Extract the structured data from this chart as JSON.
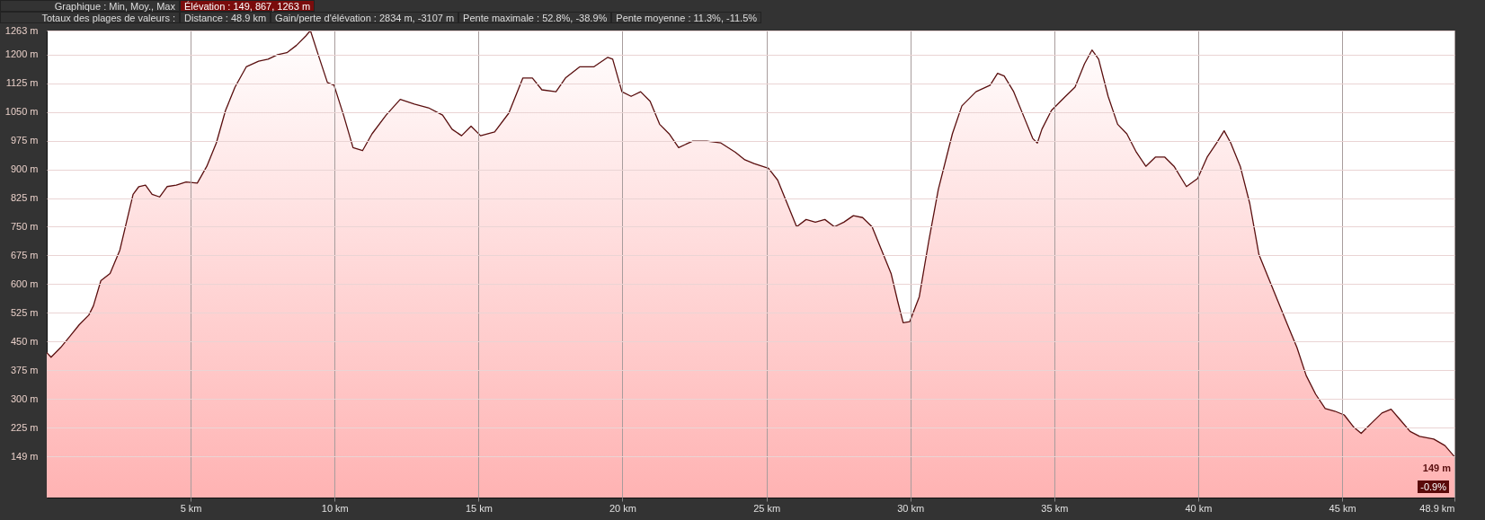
{
  "chart_data": {
    "type": "area",
    "annotations": [
      "Graphique : Min, Moy., Max",
      "Élévation : 149, 867, 1263 m",
      "Totaux des plages de valeurs :",
      "Distance : 48.9 km",
      "Gain/perte d'élévation : 2834 m, -3107 m",
      "Pente maximale : 52.8%, -38.9%",
      "Pente moyenne : 11.3%, -11.5%",
      "-0.9%",
      {
        "text": "149 m",
        "x": 48.9,
        "y": 149
      }
    ],
    "x": [
      0,
      0.15,
      0.48,
      0.8,
      1.13,
      1.46,
      1.62,
      1.88,
      2.2,
      2.54,
      2.77,
      3.0,
      3.2,
      3.43,
      3.66,
      3.92,
      4.18,
      4.5,
      4.84,
      5.23,
      5.56,
      5.89,
      6.21,
      6.54,
      6.93,
      7.36,
      7.69,
      8.02,
      8.34,
      8.67,
      9.0,
      9.16,
      9.43,
      9.75,
      9.98,
      10.31,
      10.64,
      10.97,
      11.3,
      11.79,
      12.28,
      12.77,
      13.26,
      13.75,
      14.08,
      14.41,
      14.74,
      15.07,
      15.56,
      16.05,
      16.54,
      16.87,
      17.2,
      17.69,
      18.02,
      18.51,
      19.0,
      19.49,
      19.66,
      19.98,
      20.3,
      20.63,
      20.96,
      21.29,
      21.62,
      21.95,
      22.44,
      22.93,
      23.42,
      23.92,
      24.25,
      24.57,
      25.07,
      25.39,
      25.72,
      26.05,
      26.38,
      26.7,
      27.03,
      27.36,
      27.69,
      28.02,
      28.34,
      28.67,
      29.0,
      29.33,
      29.56,
      29.75,
      29.98,
      30.31,
      30.64,
      30.97,
      31.46,
      31.79,
      32.28,
      32.77,
      33.03,
      33.26,
      33.59,
      33.92,
      34.25,
      34.41,
      34.57,
      34.9,
      35.39,
      35.72,
      36.05,
      36.31,
      36.54,
      36.87,
      37.2,
      37.52,
      37.85,
      38.18,
      38.51,
      38.84,
      39.16,
      39.59,
      39.98,
      40.31,
      40.64,
      40.9,
      41.13,
      41.46,
      41.79,
      42.11,
      42.44,
      42.77,
      43.1,
      43.43,
      43.75,
      44.08,
      44.41,
      44.74,
      45.07,
      45.39,
      45.66,
      46.05,
      46.38,
      46.7,
      47.03,
      47.36,
      47.69,
      48.18,
      48.57,
      48.9
    ],
    "series": [
      {
        "color": "#5a0f0f",
        "values": [
          421,
          409,
          434,
          463,
          494,
          519,
          543,
          609,
          628,
          689,
          762,
          835,
          855,
          859,
          835,
          828,
          855,
          859,
          867,
          864,
          908,
          969,
          1054,
          1115,
          1168,
          1183,
          1188,
          1200,
          1205,
          1224,
          1249,
          1263,
          1200,
          1127,
          1120,
          1042,
          957,
          949,
          993,
          1042,
          1083,
          1071,
          1061,
          1042,
          1005,
          988,
          1013,
          988,
          998,
          1047,
          1139,
          1139,
          1108,
          1103,
          1139,
          1168,
          1168,
          1193,
          1188,
          1103,
          1091,
          1103,
          1078,
          1018,
          993,
          957,
          974,
          974,
          969,
          945,
          925,
          915,
          903,
          872,
          811,
          750,
          769,
          762,
          769,
          750,
          762,
          779,
          774,
          750,
          689,
          628,
          555,
          499,
          502,
          567,
          713,
          847,
          993,
          1066,
          1103,
          1120,
          1151,
          1144,
          1103,
          1042,
          981,
          969,
          1005,
          1054,
          1091,
          1115,
          1176,
          1212,
          1188,
          1091,
          1018,
          993,
          945,
          908,
          932,
          932,
          908,
          855,
          876,
          932,
          969,
          1001,
          969,
          908,
          811,
          677,
          616,
          555,
          494,
          434,
          361,
          312,
          275,
          268,
          258,
          227,
          210,
          239,
          263,
          273,
          244,
          215,
          202,
          195,
          178,
          149
        ]
      }
    ],
    "xlim": [
      0,
      48.9
    ],
    "ylim": [
      42,
      1263
    ],
    "xticks": [
      {
        "value": 5,
        "label": "5 km"
      },
      {
        "value": 10,
        "label": "10 km"
      },
      {
        "value": 15,
        "label": "15 km"
      },
      {
        "value": 20,
        "label": "20 km"
      },
      {
        "value": 25,
        "label": "25 km"
      },
      {
        "value": 30,
        "label": "30 km"
      },
      {
        "value": 35,
        "label": "35 km"
      },
      {
        "value": 40,
        "label": "40 km"
      },
      {
        "value": 45,
        "label": "45 km"
      },
      {
        "value": 48.9,
        "label": "48.9 km"
      }
    ],
    "yticks": [
      {
        "value": 149,
        "label": "149 m"
      },
      {
        "value": 225,
        "label": "225 m"
      },
      {
        "value": 300,
        "label": "300 m"
      },
      {
        "value": 375,
        "label": "375 m"
      },
      {
        "value": 450,
        "label": "450 m"
      },
      {
        "value": 525,
        "label": "525 m"
      },
      {
        "value": 600,
        "label": "600 m"
      },
      {
        "value": 675,
        "label": "675 m"
      },
      {
        "value": 750,
        "label": "750 m"
      },
      {
        "value": 825,
        "label": "825 m"
      },
      {
        "value": 900,
        "label": "900 m"
      },
      {
        "value": 975,
        "label": "975 m"
      },
      {
        "value": 1050,
        "label": "1050 m"
      },
      {
        "value": 1125,
        "label": "1125 m"
      },
      {
        "value": 1200,
        "label": "1200 m"
      },
      {
        "value": 1263,
        "label": "1263 m"
      }
    ],
    "grid": true
  }
}
